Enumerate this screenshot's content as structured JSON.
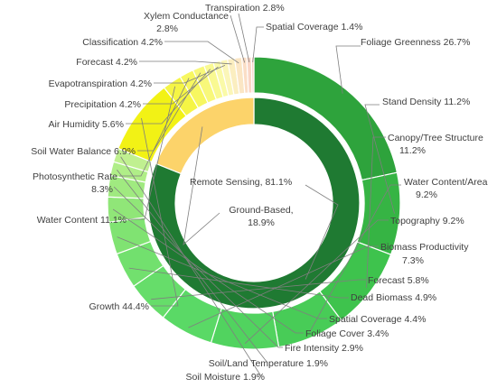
{
  "chart_data": {
    "type": "pie",
    "variant": "nested-donut",
    "inner_ring": [
      {
        "label": "Remote Sensing, 81.1%",
        "value": 81.1,
        "color": "#1f7a32"
      },
      {
        "label": "Ground-Based, 18.9%",
        "value": 18.9,
        "color": "#fcd36a"
      }
    ],
    "outer_ring": [
      {
        "label": "Foliage Greenness 26.7%",
        "value": 21.65,
        "color": "#2ea33c",
        "parent": "Remote Sensing"
      },
      {
        "label": "Stand Density 11.2%",
        "value": 9.08,
        "color": "#36b444",
        "parent": "Remote Sensing"
      },
      {
        "label": "Canopy/Tree Structure 11.2%",
        "value": 9.08,
        "color": "#3ec34d",
        "parent": "Remote Sensing"
      },
      {
        "label": "Water Content/Area 9.2%",
        "value": 7.46,
        "color": "#48cc57",
        "parent": "Remote Sensing"
      },
      {
        "label": "Topography 9.2%",
        "value": 7.46,
        "color": "#51d35f",
        "parent": "Remote Sensing"
      },
      {
        "label": "Biomass Productivity 7.3%",
        "value": 5.92,
        "color": "#5ad966",
        "parent": "Remote Sensing"
      },
      {
        "label": "Forecast 5.8%",
        "value": 4.7,
        "color": "#66dd6a",
        "parent": "Remote Sensing"
      },
      {
        "label": "Dead Biomass 4.9%",
        "value": 3.97,
        "color": "#72e06e",
        "parent": "Remote Sensing"
      },
      {
        "label": "Spatial Coverage 4.4%",
        "value": 3.57,
        "color": "#80e372",
        "parent": "Remote Sensing"
      },
      {
        "label": "Foliage Cover 3.4%",
        "value": 2.76,
        "color": "#90e678",
        "parent": "Remote Sensing"
      },
      {
        "label": "Fire Intensity 2.9%",
        "value": 2.35,
        "color": "#a0ea80",
        "parent": "Remote Sensing"
      },
      {
        "label": "Soil/Land Temperature 1.9%",
        "value": 1.54,
        "color": "#b0ee88",
        "parent": "Remote Sensing"
      },
      {
        "label": "Soil Moisture 1.9%",
        "value": 1.54,
        "color": "#c0f090",
        "parent": "Remote Sensing"
      },
      {
        "label": "Growth 44.4%",
        "value": 8.39,
        "color": "#f2f215",
        "parent": "Ground-Based"
      },
      {
        "label": "Water Content 11.1%",
        "value": 2.1,
        "color": "#f5f545",
        "parent": "Ground-Based"
      },
      {
        "label": "Photosynthetic Rate 8.3%",
        "value": 1.57,
        "color": "#f7f760",
        "parent": "Ground-Based"
      },
      {
        "label": "Soil Water Balance 6.9%",
        "value": 1.3,
        "color": "#f8f87a",
        "parent": "Ground-Based"
      },
      {
        "label": "Air Humidity 5.6%",
        "value": 1.06,
        "color": "#f9f992",
        "parent": "Ground-Based"
      },
      {
        "label": "Precipitation 4.2%",
        "value": 0.79,
        "color": "#fafaa8",
        "parent": "Ground-Based"
      },
      {
        "label": "Evapotranspiration 4.2%",
        "value": 0.79,
        "color": "#fbf6b8",
        "parent": "Ground-Based"
      },
      {
        "label": "Forecast 4.2%",
        "value": 0.79,
        "color": "#fbeec0",
        "parent": "Ground-Based"
      },
      {
        "label": "Classification 4.2%",
        "value": 0.79,
        "color": "#fbe6c4",
        "parent": "Ground-Based"
      },
      {
        "label": "Xylem Conductance 2.8%",
        "value": 0.53,
        "color": "#fbdec6",
        "parent": "Ground-Based"
      },
      {
        "label": "Transpiration 2.8%",
        "value": 0.53,
        "color": "#fad6c6",
        "parent": "Ground-Based"
      },
      {
        "label": "Spatial Coverage 1.4%",
        "value": 0.26,
        "color": "#f9cfc4",
        "parent": "Ground-Based"
      }
    ]
  }
}
